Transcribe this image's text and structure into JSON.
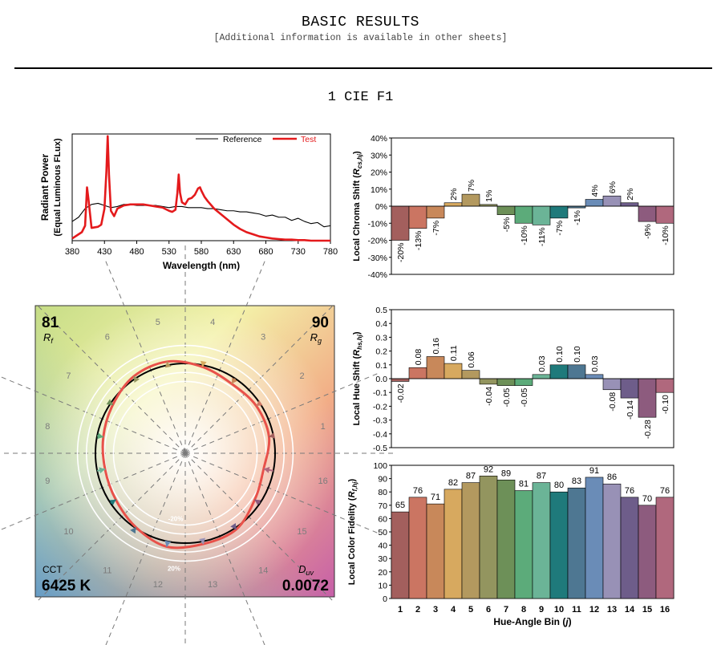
{
  "header": {
    "title": "BASIC RESULTS",
    "subtitle": "[Additional information is available in other sheets]"
  },
  "section_title": "1 CIE F1",
  "chart_data": [
    {
      "id": "spd",
      "type": "line",
      "xlabel": "Wavelength (nm)",
      "ylabel_line1": "Radiant Power",
      "ylabel_line2": "(Equal Luminous FLux)",
      "xlim": [
        380,
        780
      ],
      "xticks": [
        380,
        430,
        480,
        530,
        580,
        630,
        680,
        730,
        780
      ],
      "legend": {
        "placement": "top-right",
        "reference": "Reference",
        "test": "Test"
      },
      "colors": {
        "reference": "#000000",
        "test": "#e41a1c"
      },
      "series": [
        {
          "name": "Reference",
          "x": [
            380,
            390,
            400,
            410,
            420,
            430,
            440,
            450,
            460,
            470,
            480,
            490,
            500,
            510,
            520,
            530,
            540,
            550,
            560,
            570,
            580,
            590,
            600,
            610,
            620,
            630,
            640,
            650,
            660,
            670,
            680,
            690,
            700,
            710,
            720,
            730,
            740,
            750,
            760,
            770,
            780
          ],
          "y": [
            0.18,
            0.22,
            0.3,
            0.34,
            0.35,
            0.33,
            0.31,
            0.32,
            0.34,
            0.34,
            0.33,
            0.33,
            0.33,
            0.33,
            0.32,
            0.31,
            0.32,
            0.32,
            0.31,
            0.31,
            0.31,
            0.3,
            0.3,
            0.29,
            0.28,
            0.28,
            0.27,
            0.27,
            0.26,
            0.25,
            0.23,
            0.24,
            0.22,
            0.22,
            0.19,
            0.21,
            0.18,
            0.16,
            0.17,
            0.13,
            0.14
          ]
        },
        {
          "name": "Test",
          "x": [
            380,
            390,
            395,
            400,
            403,
            405,
            410,
            420,
            425,
            430,
            433,
            435,
            437,
            440,
            445,
            450,
            460,
            470,
            480,
            490,
            500,
            510,
            520,
            530,
            535,
            540,
            543,
            545,
            547,
            550,
            555,
            560,
            565,
            570,
            575,
            578,
            580,
            585,
            590,
            600,
            610,
            620,
            630,
            640,
            650,
            660,
            670,
            680,
            690,
            700,
            710,
            720,
            730,
            740,
            750,
            760,
            770,
            780
          ],
          "y": [
            0.02,
            0.06,
            0.08,
            0.14,
            0.5,
            0.4,
            0.12,
            0.13,
            0.15,
            0.3,
            0.65,
            0.98,
            0.62,
            0.28,
            0.23,
            0.3,
            0.33,
            0.34,
            0.34,
            0.34,
            0.33,
            0.32,
            0.31,
            0.28,
            0.27,
            0.29,
            0.45,
            0.62,
            0.45,
            0.36,
            0.34,
            0.39,
            0.4,
            0.43,
            0.49,
            0.5,
            0.47,
            0.41,
            0.37,
            0.3,
            0.25,
            0.2,
            0.15,
            0.11,
            0.08,
            0.06,
            0.04,
            0.03,
            0.02,
            0.015,
            0.01,
            0.01,
            0.005,
            0.005,
            0.0,
            0.0,
            0.0,
            0.0
          ]
        }
      ]
    },
    {
      "id": "chroma",
      "type": "bar",
      "ylabel": "Local Chroma Shift (Rcs,hj)",
      "ylabel_main": "Local Chroma Shift (",
      "ylabel_sym": "R",
      "ylabel_sub": "cs,hj",
      "ylabel_end": ")",
      "ylim": [
        -40,
        40
      ],
      "yticks": [
        "40%",
        "30%",
        "20%",
        "10%",
        "0%",
        "-10%",
        "-20%",
        "-30%",
        "-40%"
      ],
      "categories": [
        1,
        2,
        3,
        4,
        5,
        6,
        7,
        8,
        9,
        10,
        11,
        12,
        13,
        14,
        15,
        16
      ],
      "values": [
        -20,
        -13,
        -7,
        2,
        7,
        1,
        -5,
        -10,
        -11,
        -7,
        -1,
        4,
        6,
        2,
        -9,
        -10
      ],
      "labels": [
        "-20%",
        "-13%",
        "-7%",
        "2%",
        "7%",
        "1%",
        "-5%",
        "-10%",
        "-11%",
        "-7%",
        "-1%",
        "4%",
        "6%",
        "2%",
        "-9%",
        "-10%"
      ]
    },
    {
      "id": "hue",
      "type": "bar",
      "ylabel": "Local Hue Shift (Rhs,hj)",
      "ylabel_main": "Local Hue Shift (",
      "ylabel_sym": "R",
      "ylabel_sub": "hs,hj",
      "ylabel_end": ")",
      "ylim": [
        -0.5,
        0.5
      ],
      "yticks": [
        "0.5",
        "0.4",
        "0.3",
        "0.2",
        "0.1",
        "0.0",
        "-0.1",
        "-0.2",
        "-0.3",
        "-0.4",
        "-0.5"
      ],
      "categories": [
        1,
        2,
        3,
        4,
        5,
        6,
        7,
        8,
        9,
        10,
        11,
        12,
        13,
        14,
        15,
        16
      ],
      "values": [
        -0.02,
        0.08,
        0.16,
        0.11,
        0.06,
        -0.04,
        -0.05,
        -0.05,
        0.03,
        0.1,
        0.1,
        0.03,
        -0.08,
        -0.14,
        -0.28,
        -0.1
      ],
      "labels": [
        "-0.02",
        "0.08",
        "0.16",
        "0.11",
        "0.06",
        "-0.04",
        "-0.05",
        "-0.05",
        "0.03",
        "0.10",
        "0.10",
        "0.03",
        "-0.08",
        "-0.14",
        "-0.28",
        "-0.10"
      ]
    },
    {
      "id": "fidelity",
      "type": "bar",
      "ylabel": "Local Color Fidelity (Rf,hj)",
      "ylabel_main": "Local Color Fidelity (",
      "ylabel_sym": "R",
      "ylabel_sub": "f,hj",
      "ylabel_end": ")",
      "xlabel_main": "Hue-Angle Bin (",
      "xlabel_sym": "j",
      "xlabel_end": ")",
      "ylim": [
        0,
        100
      ],
      "yticks": [
        "100",
        "90",
        "80",
        "70",
        "60",
        "50",
        "40",
        "30",
        "20",
        "10",
        "0"
      ],
      "categories": [
        "1",
        "2",
        "3",
        "4",
        "5",
        "6",
        "7",
        "8",
        "9",
        "10",
        "11",
        "12",
        "13",
        "14",
        "15",
        "16"
      ],
      "values": [
        65,
        76,
        71,
        82,
        87,
        92,
        89,
        81,
        87,
        80,
        83,
        91,
        86,
        76,
        70,
        76
      ],
      "labels": [
        "65",
        "76",
        "71",
        "82",
        "87",
        "92",
        "89",
        "81",
        "87",
        "80",
        "83",
        "91",
        "86",
        "76",
        "70",
        "76"
      ]
    },
    {
      "id": "cvg",
      "type": "other",
      "rf_value": "81",
      "rf_label": "R",
      "rf_sub": "f",
      "rg_value": "90",
      "rg_label": "R",
      "rg_sub": "g",
      "cct_label": "CCT",
      "cct_value": "6425 K",
      "duv_label": "D",
      "duv_sub": "uv",
      "duv_value": "0.0072",
      "ring_labels": {
        "inner": "-20%",
        "outer": "20%"
      },
      "bins": [
        "1",
        "2",
        "3",
        "4",
        "5",
        "6",
        "7",
        "8",
        "9",
        "10",
        "11",
        "12",
        "13",
        "14",
        "15",
        "16"
      ],
      "test_radius_ratio": [
        0.95,
        0.95,
        0.93,
        0.98,
        1.04,
        1.03,
        0.97,
        0.93,
        0.91,
        0.93,
        0.99,
        1.06,
        1.03,
        1.02,
        0.93,
        0.89
      ]
    }
  ],
  "bin_colors": [
    "#a35f5d",
    "#cb7562",
    "#c8885a",
    "#d7a95f",
    "#b3995f",
    "#93955f",
    "#6d9058",
    "#5cab7a",
    "#6bb497",
    "#1f7a7b",
    "#4e7792",
    "#6a8cb7",
    "#9891b6",
    "#6e5d8a",
    "#8d5b7e",
    "#b0687d"
  ]
}
